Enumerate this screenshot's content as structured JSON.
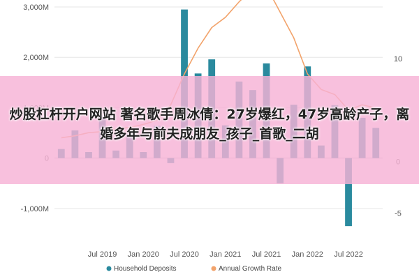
{
  "chart_data": {
    "type": "bar-line",
    "categories": [
      "2019-01",
      "2019-03",
      "2019-05",
      "2019-07",
      "2019-09",
      "2019-11",
      "2020-01",
      "2020-03",
      "2020-05",
      "2020-07",
      "2020-09",
      "2020-11",
      "2021-01",
      "2021-03",
      "2021-05",
      "2021-07",
      "2021-09",
      "2021-11",
      "2022-01",
      "2022-03",
      "2022-05",
      "2022-07",
      "2022-09",
      "2022-11"
    ],
    "series": [
      {
        "name": "Household Deposits",
        "axis": "left",
        "type": "bar",
        "color": "#2a8a9e",
        "values": [
          180,
          550,
          120,
          850,
          150,
          480,
          120,
          640,
          -100,
          2950,
          1680,
          1960,
          650,
          1520,
          1350,
          1880,
          -500,
          1060,
          1820,
          250,
          1050,
          -1350,
          800,
          600
        ]
      },
      {
        "name": "Annual Growth Rate",
        "axis": "right",
        "type": "line",
        "color": "#f2a36b",
        "values": [
          2.3,
          2.5,
          2.8,
          2.9,
          3.2,
          3.3,
          3.6,
          4.0,
          5.5,
          8.5,
          11.0,
          13.0,
          14.0,
          15.5,
          16.8,
          17.0,
          14.5,
          12.0,
          8.5,
          7.0,
          6.5,
          5.0,
          5.5,
          5.2
        ]
      }
    ],
    "y_left": {
      "min": -1500,
      "max": 3000,
      "ticks": [
        3000,
        2000,
        1000,
        0,
        -1000
      ],
      "tick_labels": [
        "3,000M",
        "2,000M",
        "1,000M",
        "0",
        "-1,000M"
      ]
    },
    "y_right": {
      "min": -7,
      "max": 15,
      "ticks": [
        10,
        5,
        0,
        -5
      ],
      "tick_labels": [
        "10",
        "5",
        "0",
        "-5"
      ]
    },
    "x_ticks": [
      {
        "label": "Jul 2019",
        "index": 3
      },
      {
        "label": "Jan 2020",
        "index": 6
      },
      {
        "label": "Jul 2020",
        "index": 9
      },
      {
        "label": "Jan 2021",
        "index": 12
      },
      {
        "label": "Jul 2021",
        "index": 15
      },
      {
        "label": "Jan 2022",
        "index": 18
      },
      {
        "label": "Jul 2022",
        "index": 21
      }
    ],
    "legend": [
      {
        "label": "Household Deposits",
        "color": "#2a8a9e"
      },
      {
        "label": "Annual Growth Rate",
        "color": "#f2a36b"
      }
    ],
    "grid": true,
    "legend_position": "bottom"
  },
  "overlay": {
    "text": "炒股杠杆开户网站 著名歌手周冰倩：27岁爆红，47岁高龄产子，离婚多年与前夫成朋友_孩子_首歌_二胡"
  }
}
